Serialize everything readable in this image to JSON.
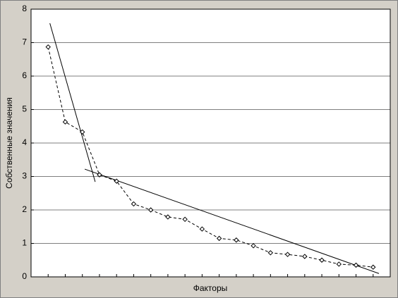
{
  "chart_data": {
    "type": "line",
    "x_label": "Факторы",
    "y_label": "Собственные значения",
    "x": [
      1,
      2,
      3,
      4,
      5,
      6,
      7,
      8,
      9,
      10,
      11,
      12,
      13,
      14,
      15,
      16,
      17,
      18,
      19,
      20
    ],
    "values": [
      6.87,
      4.63,
      4.33,
      3.05,
      2.86,
      2.18,
      2.0,
      1.79,
      1.72,
      1.43,
      1.15,
      1.1,
      0.93,
      0.72,
      0.67,
      0.61,
      0.5,
      0.38,
      0.35,
      0.29
    ],
    "color": "#000000",
    "fit_lines": [
      {
        "x": [
          1.1,
          3.75
        ],
        "values": [
          7.58,
          2.84
        ]
      },
      {
        "x": [
          3.14,
          20.34
        ],
        "values": [
          3.22,
          0.1
        ]
      }
    ],
    "xlim": [
      0,
      21
    ],
    "ylim": [
      0,
      8
    ],
    "yticks": [
      0,
      1,
      2,
      3,
      4,
      5,
      6,
      7,
      8
    ],
    "grid": true
  }
}
